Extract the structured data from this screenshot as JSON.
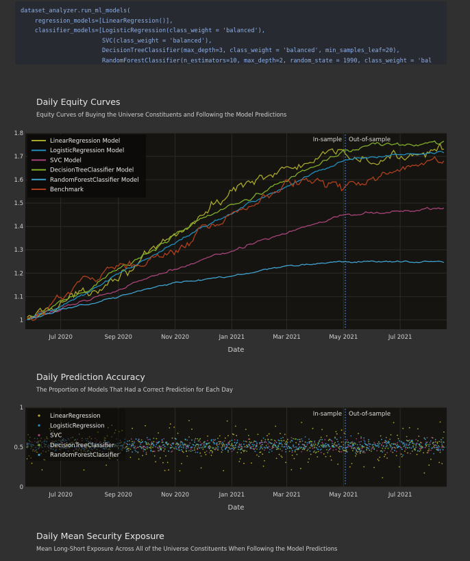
{
  "code": {
    "lines": [
      "dataset_analyzer.run_ml_models(",
      "    regression_models=[LinearRegression()],",
      "    classifier_models=[LogisticRegression(class_weight = 'balanced'),",
      "                       SVC(class_weight = 'balanced'),",
      "                       DecisionTreeClassifier(max_depth=3, class_weight = 'balanced', min_samples_leaf=20),",
      "                       RandomForestClassifier(n_estimators=10, max_depth=2, random_state = 1990, class_weight = 'bal"
    ]
  },
  "sections": {
    "equity": {
      "title": "Daily Equity Curves",
      "subtitle": "Equity Curves of Buying the Universe Constituents and Following the Model Predictions"
    },
    "accuracy": {
      "title": "Daily Prediction Accuracy",
      "subtitle": "The Proportion of Models That Had a Correct Prediction for Each Day"
    },
    "exposure": {
      "title": "Daily Mean Security Exposure",
      "subtitle": "Mean Long-Short Exposure Across All of the Universe Constituents When Following the Model Predictions"
    }
  },
  "chart_data": [
    {
      "type": "line",
      "xlabel": "Date",
      "ylabel": "",
      "x_range": [
        "2020-05-24",
        "2021-08-20"
      ],
      "ylim": [
        0.96,
        1.8
      ],
      "x_tick_labels": [
        "Jul 2020",
        "Sep 2020",
        "Nov 2020",
        "Jan 2021",
        "Mar 2021",
        "May 2021",
        "Jul 2021"
      ],
      "x_tick_dates": [
        "2020-07-01",
        "2020-09-01",
        "2020-11-01",
        "2021-01-01",
        "2021-03-01",
        "2021-05-01",
        "2021-07-01"
      ],
      "y_ticks": [
        1,
        1.1,
        1.2,
        1.3,
        1.4,
        1.5,
        1.6,
        1.7,
        1.8
      ],
      "y_tick_labels": [
        "1",
        "1.1",
        "1.2",
        "1.3",
        "1.4",
        "1.5",
        "1.6",
        "1.7",
        "1.8"
      ],
      "grid": true,
      "legend": "top-left",
      "annotations": {
        "split_date": "2021-05-03",
        "left_label": "In-sample",
        "right_label": "Out-of-sample"
      },
      "series": [
        {
          "name": "LinearRegression Model",
          "color": "#a8a82a",
          "points": [
            [
              "2020-05-26",
              1.0
            ],
            [
              "2020-07-01",
              1.08
            ],
            [
              "2020-08-01",
              1.12
            ],
            [
              "2020-09-01",
              1.2
            ],
            [
              "2020-10-01",
              1.26
            ],
            [
              "2020-11-01",
              1.36
            ],
            [
              "2020-12-01",
              1.45
            ],
            [
              "2021-01-01",
              1.55
            ],
            [
              "2021-02-01",
              1.62
            ],
            [
              "2021-03-01",
              1.64
            ],
            [
              "2021-04-01",
              1.68
            ],
            [
              "2021-05-01",
              1.72
            ],
            [
              "2021-06-01",
              1.67
            ],
            [
              "2021-07-01",
              1.7
            ],
            [
              "2021-08-17",
              1.75
            ]
          ]
        },
        {
          "name": "LogisticRegression Model",
          "color": "#1f8fbf",
          "points": [
            [
              "2020-05-26",
              1.0
            ],
            [
              "2020-07-01",
              1.06
            ],
            [
              "2020-08-01",
              1.12
            ],
            [
              "2020-09-01",
              1.2
            ],
            [
              "2020-10-01",
              1.26
            ],
            [
              "2020-11-01",
              1.33
            ],
            [
              "2020-12-01",
              1.4
            ],
            [
              "2021-01-01",
              1.46
            ],
            [
              "2021-02-01",
              1.52
            ],
            [
              "2021-03-01",
              1.57
            ],
            [
              "2021-04-01",
              1.63
            ],
            [
              "2021-05-01",
              1.68
            ],
            [
              "2021-06-01",
              1.7
            ],
            [
              "2021-07-01",
              1.71
            ],
            [
              "2021-08-17",
              1.72
            ]
          ]
        },
        {
          "name": "SVC Model",
          "color": "#a8447a",
          "points": [
            [
              "2020-05-26",
              1.0
            ],
            [
              "2020-07-01",
              1.05
            ],
            [
              "2020-08-01",
              1.09
            ],
            [
              "2020-09-01",
              1.13
            ],
            [
              "2020-10-01",
              1.18
            ],
            [
              "2020-11-01",
              1.22
            ],
            [
              "2020-12-01",
              1.26
            ],
            [
              "2021-01-01",
              1.3
            ],
            [
              "2021-02-01",
              1.34
            ],
            [
              "2021-03-01",
              1.37
            ],
            [
              "2021-04-01",
              1.41
            ],
            [
              "2021-05-01",
              1.45
            ],
            [
              "2021-06-01",
              1.46
            ],
            [
              "2021-07-01",
              1.46
            ],
            [
              "2021-08-17",
              1.48
            ]
          ]
        },
        {
          "name": "DecisionTreeClassifier Model",
          "color": "#7fae2a",
          "points": [
            [
              "2020-05-26",
              1.0
            ],
            [
              "2020-07-01",
              1.07
            ],
            [
              "2020-08-01",
              1.14
            ],
            [
              "2020-09-01",
              1.22
            ],
            [
              "2020-10-01",
              1.28
            ],
            [
              "2020-11-01",
              1.36
            ],
            [
              "2020-12-01",
              1.44
            ],
            [
              "2021-01-01",
              1.49
            ],
            [
              "2021-02-01",
              1.54
            ],
            [
              "2021-03-01",
              1.6
            ],
            [
              "2021-04-01",
              1.66
            ],
            [
              "2021-05-01",
              1.72
            ],
            [
              "2021-06-01",
              1.75
            ],
            [
              "2021-07-01",
              1.75
            ],
            [
              "2021-08-17",
              1.76
            ]
          ]
        },
        {
          "name": "RandomForestClassifier Model",
          "color": "#3fa3cf",
          "points": [
            [
              "2020-05-26",
              1.0
            ],
            [
              "2020-07-01",
              1.04
            ],
            [
              "2020-08-01",
              1.07
            ],
            [
              "2020-09-01",
              1.1
            ],
            [
              "2020-10-01",
              1.13
            ],
            [
              "2020-11-01",
              1.16
            ],
            [
              "2020-12-01",
              1.17
            ],
            [
              "2021-01-01",
              1.19
            ],
            [
              "2021-02-01",
              1.21
            ],
            [
              "2021-03-01",
              1.23
            ],
            [
              "2021-04-01",
              1.24
            ],
            [
              "2021-05-01",
              1.25
            ],
            [
              "2021-06-01",
              1.25
            ],
            [
              "2021-07-01",
              1.25
            ],
            [
              "2021-08-17",
              1.25
            ]
          ]
        },
        {
          "name": "Benchmark",
          "color": "#b0401c",
          "points": [
            [
              "2020-05-26",
              1.0
            ],
            [
              "2020-07-01",
              1.1
            ],
            [
              "2020-08-01",
              1.18
            ],
            [
              "2020-09-01",
              1.25
            ],
            [
              "2020-10-01",
              1.24
            ],
            [
              "2020-11-01",
              1.3
            ],
            [
              "2020-12-01",
              1.38
            ],
            [
              "2021-01-01",
              1.45
            ],
            [
              "2021-02-01",
              1.52
            ],
            [
              "2021-03-01",
              1.58
            ],
            [
              "2021-04-01",
              1.6
            ],
            [
              "2021-05-01",
              1.55
            ],
            [
              "2021-06-01",
              1.6
            ],
            [
              "2021-07-01",
              1.65
            ],
            [
              "2021-08-17",
              1.69
            ]
          ]
        }
      ]
    },
    {
      "type": "scatter",
      "xlabel": "Date",
      "ylabel": "",
      "x_range": [
        "2020-05-24",
        "2021-08-20"
      ],
      "ylim": [
        0,
        1
      ],
      "x_tick_labels": [
        "Jul 2020",
        "Sep 2020",
        "Nov 2020",
        "Jan 2021",
        "Mar 2021",
        "May 2021",
        "Jul 2021"
      ],
      "x_tick_dates": [
        "2020-07-01",
        "2020-09-01",
        "2020-11-01",
        "2021-01-01",
        "2021-03-01",
        "2021-05-01",
        "2021-07-01"
      ],
      "y_ticks": [
        0,
        0.5,
        1
      ],
      "y_tick_labels": [
        "0",
        "0.5",
        "1"
      ],
      "grid": true,
      "legend": "top-left",
      "annotations": {
        "split_date": "2021-05-03",
        "left_label": "In-sample",
        "right_label": "Out-of-sample"
      },
      "series": [
        {
          "name": "LinearRegression",
          "color": "#b5a82c",
          "mean": 0.5,
          "spread": 0.22
        },
        {
          "name": "LogisticRegression",
          "color": "#2a8fc9",
          "mean": 0.52,
          "spread": 0.07
        },
        {
          "name": "SVC",
          "color": "#a2447a",
          "mean": 0.52,
          "spread": 0.07
        },
        {
          "name": "DecisionTreeClassifier",
          "color": "#7aa83a",
          "mean": 0.52,
          "spread": 0.08
        },
        {
          "name": "RandomForestClassifier",
          "color": "#3fa3cf",
          "mean": 0.52,
          "spread": 0.06
        }
      ]
    }
  ]
}
